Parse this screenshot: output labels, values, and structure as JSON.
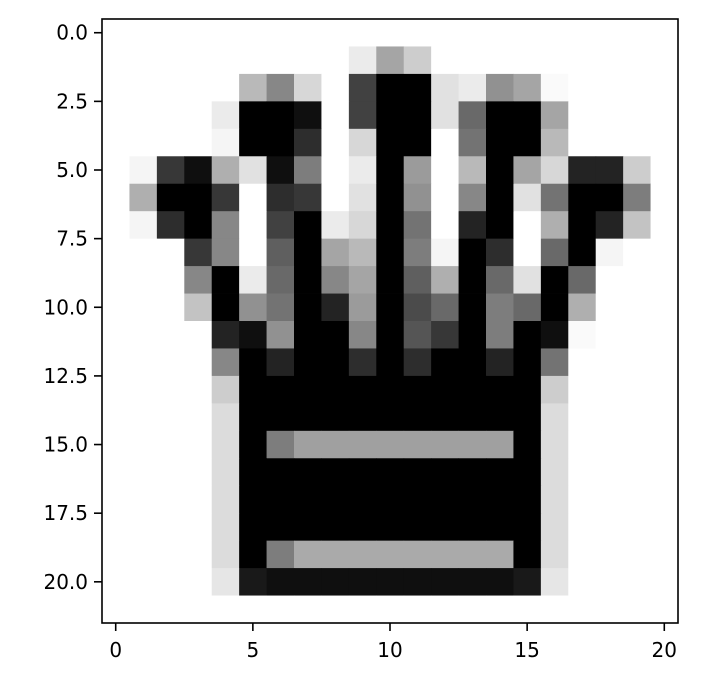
{
  "chart_data": {
    "type": "heatmap",
    "title": "",
    "xlabel": "",
    "ylabel": "",
    "colormap": "gray_r",
    "value_range": [
      0,
      255
    ],
    "xlim": [
      -0.5,
      20.5
    ],
    "ylim": [
      21.5,
      -0.5
    ],
    "y_axis_inverted": true,
    "grid": false,
    "legend": "none",
    "x_ticks": [
      0,
      5,
      10,
      15,
      20
    ],
    "x_tick_labels": [
      "0",
      "5",
      "10",
      "15",
      "20"
    ],
    "y_ticks": [
      0.0,
      2.5,
      5.0,
      7.5,
      10.0,
      12.5,
      15.0,
      17.5,
      20.0
    ],
    "y_tick_labels": [
      "0.0",
      "2.5",
      "5.0",
      "7.5",
      "10.0",
      "12.5",
      "15.0",
      "17.5",
      "20.0"
    ],
    "matrix": [
      [
        0,
        0,
        0,
        0,
        0,
        0,
        0,
        0,
        0,
        0,
        0,
        0,
        0,
        0,
        0,
        0,
        0,
        0,
        0,
        0,
        0
      ],
      [
        0,
        0,
        0,
        0,
        0,
        0,
        0,
        0,
        0,
        20,
        90,
        50,
        0,
        0,
        0,
        0,
        0,
        0,
        0,
        0,
        0
      ],
      [
        0,
        0,
        0,
        0,
        0,
        70,
        120,
        40,
        0,
        190,
        255,
        255,
        30,
        20,
        110,
        90,
        5,
        0,
        0,
        0,
        0
      ],
      [
        0,
        0,
        0,
        0,
        20,
        255,
        255,
        240,
        0,
        190,
        255,
        255,
        30,
        150,
        255,
        255,
        90,
        0,
        0,
        0,
        0
      ],
      [
        0,
        0,
        0,
        0,
        10,
        255,
        255,
        210,
        0,
        40,
        255,
        255,
        0,
        140,
        255,
        255,
        70,
        0,
        0,
        0,
        0
      ],
      [
        0,
        10,
        200,
        240,
        80,
        30,
        240,
        130,
        0,
        20,
        255,
        100,
        0,
        70,
        255,
        90,
        40,
        220,
        220,
        50,
        0
      ],
      [
        0,
        80,
        255,
        255,
        200,
        0,
        210,
        200,
        0,
        30,
        255,
        110,
        0,
        120,
        255,
        30,
        140,
        255,
        255,
        130,
        0
      ],
      [
        0,
        10,
        210,
        255,
        120,
        0,
        190,
        255,
        20,
        40,
        255,
        140,
        0,
        220,
        255,
        0,
        80,
        255,
        220,
        60,
        0
      ],
      [
        0,
        0,
        0,
        200,
        120,
        0,
        160,
        255,
        90,
        70,
        255,
        130,
        10,
        255,
        210,
        0,
        150,
        255,
        10,
        0,
        0
      ],
      [
        0,
        0,
        0,
        120,
        255,
        20,
        150,
        255,
        120,
        90,
        255,
        160,
        80,
        255,
        150,
        30,
        255,
        150,
        0,
        0,
        0
      ],
      [
        0,
        0,
        0,
        60,
        255,
        110,
        140,
        255,
        220,
        100,
        255,
        180,
        150,
        255,
        130,
        150,
        255,
        80,
        0,
        0,
        0
      ],
      [
        0,
        0,
        0,
        0,
        220,
        240,
        110,
        255,
        255,
        120,
        255,
        170,
        200,
        255,
        130,
        255,
        240,
        5,
        0,
        0,
        0
      ],
      [
        0,
        0,
        0,
        0,
        120,
        255,
        220,
        255,
        255,
        210,
        255,
        210,
        255,
        255,
        220,
        255,
        140,
        0,
        0,
        0,
        0
      ],
      [
        0,
        0,
        0,
        0,
        50,
        255,
        255,
        255,
        255,
        255,
        255,
        255,
        255,
        255,
        255,
        255,
        50,
        0,
        0,
        0,
        0
      ],
      [
        0,
        0,
        0,
        0,
        35,
        255,
        255,
        255,
        255,
        255,
        255,
        255,
        255,
        255,
        255,
        255,
        35,
        0,
        0,
        0,
        0
      ],
      [
        0,
        0,
        0,
        0,
        35,
        255,
        130,
        95,
        95,
        95,
        95,
        95,
        95,
        95,
        95,
        255,
        35,
        0,
        0,
        0,
        0
      ],
      [
        0,
        0,
        0,
        0,
        35,
        255,
        255,
        255,
        255,
        255,
        255,
        255,
        255,
        255,
        255,
        255,
        35,
        0,
        0,
        0,
        0
      ],
      [
        0,
        0,
        0,
        0,
        35,
        255,
        255,
        255,
        255,
        255,
        255,
        255,
        255,
        255,
        255,
        255,
        35,
        0,
        0,
        0,
        0
      ],
      [
        0,
        0,
        0,
        0,
        35,
        255,
        255,
        255,
        255,
        255,
        255,
        255,
        255,
        255,
        255,
        255,
        35,
        0,
        0,
        0,
        0
      ],
      [
        0,
        0,
        0,
        0,
        35,
        255,
        130,
        85,
        85,
        85,
        85,
        85,
        85,
        85,
        85,
        255,
        35,
        0,
        0,
        0,
        0
      ],
      [
        0,
        0,
        0,
        0,
        25,
        230,
        240,
        240,
        240,
        240,
        240,
        240,
        240,
        240,
        240,
        230,
        25,
        0,
        0,
        0,
        0
      ],
      [
        0,
        0,
        0,
        0,
        0,
        0,
        0,
        0,
        0,
        0,
        0,
        0,
        0,
        0,
        0,
        0,
        0,
        0,
        0,
        0,
        0
      ]
    ]
  }
}
